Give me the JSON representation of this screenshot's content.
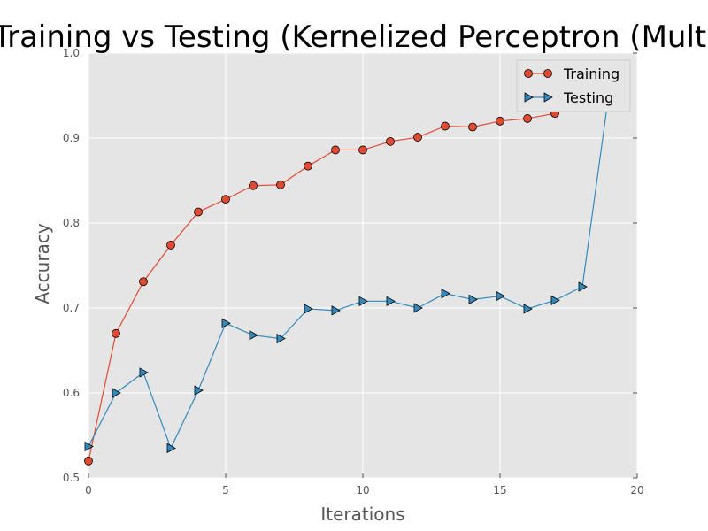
{
  "chart_data": {
    "type": "line",
    "title": "Training vs Testing (Kernelized Perceptron (Multi",
    "xlabel": "Iterations",
    "ylabel": "Accuracy",
    "xlim": [
      0,
      20
    ],
    "ylim": [
      0.5,
      1.0
    ],
    "xticks": [
      "0",
      "5",
      "10",
      "15",
      "20"
    ],
    "yticks": [
      "0.5",
      "0.6",
      "0.7",
      "0.8",
      "0.9",
      "1.0"
    ],
    "grid": true,
    "legend_position": "top-right",
    "series": [
      {
        "name": "Training",
        "marker": "circle",
        "color": "#e24a33",
        "x": [
          0,
          1,
          2,
          3,
          4,
          5,
          6,
          7,
          8,
          9,
          10,
          11,
          12,
          13,
          14,
          15,
          16,
          17
        ],
        "y": [
          0.52,
          0.67,
          0.731,
          0.774,
          0.813,
          0.828,
          0.844,
          0.845,
          0.867,
          0.886,
          0.886,
          0.896,
          0.901,
          0.914,
          0.913,
          0.92,
          0.923,
          0.929
        ]
      },
      {
        "name": "Testing",
        "marker": "triangle-right",
        "color": "#348abd",
        "x": [
          0,
          1,
          2,
          3,
          4,
          5,
          6,
          7,
          8,
          9,
          10,
          11,
          12,
          13,
          14,
          15,
          16,
          17,
          18,
          19
        ],
        "y": [
          0.537,
          0.6,
          0.624,
          0.535,
          0.603,
          0.682,
          0.668,
          0.664,
          0.699,
          0.697,
          0.708,
          0.708,
          0.7,
          0.717,
          0.71,
          0.714,
          0.699,
          0.709,
          0.725,
          0.96
        ]
      }
    ]
  }
}
